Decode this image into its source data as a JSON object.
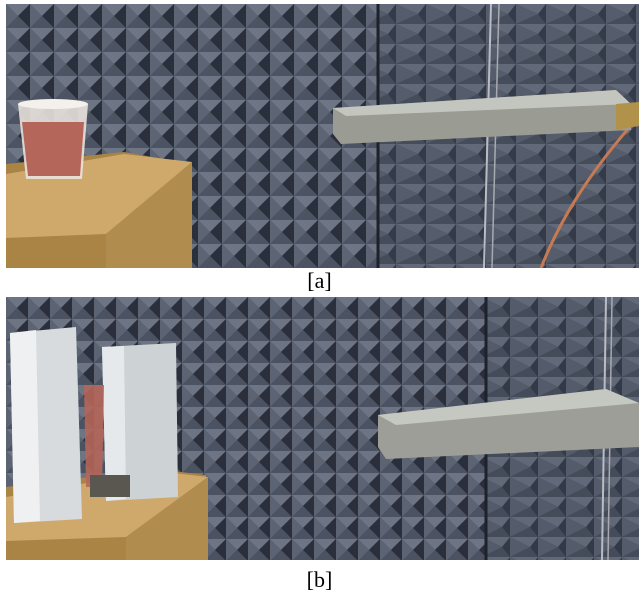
{
  "figure": {
    "panels": [
      {
        "id": "a",
        "caption": "[a]",
        "colors": {
          "absorber_light": "#6c7382",
          "absorber_dark": "#2c3240",
          "table": "#caa46a",
          "table_side": "#a98445",
          "antenna": "#9a9c94",
          "meat": "#b5665a",
          "cable": "#c77a52"
        }
      },
      {
        "id": "b",
        "caption": "[b]",
        "colors": {
          "absorber_light": "#6c7382",
          "absorber_dark": "#2c3240",
          "table": "#caa46a",
          "table_side": "#a98445",
          "antenna": "#9c9e97",
          "shield": "#d7dbde",
          "meat": "#b5665a"
        }
      }
    ]
  }
}
